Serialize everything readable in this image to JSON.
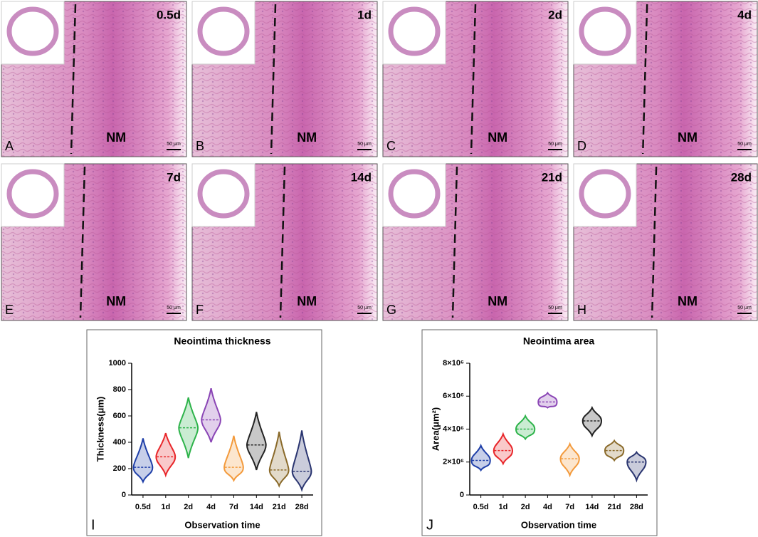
{
  "panels": [
    {
      "letter": "A",
      "time": "0.5d",
      "region": "NM",
      "scale": "50 μm"
    },
    {
      "letter": "B",
      "time": "1d",
      "region": "NM",
      "scale": "50 μm"
    },
    {
      "letter": "C",
      "time": "2d",
      "region": "NM",
      "scale": "50 μm"
    },
    {
      "letter": "D",
      "time": "4d",
      "region": "NM",
      "scale": "50 μm"
    },
    {
      "letter": "E",
      "time": "7d",
      "region": "NM",
      "scale": "50 μm"
    },
    {
      "letter": "F",
      "time": "14d",
      "region": "NM",
      "scale": "50 μm"
    },
    {
      "letter": "G",
      "time": "21d",
      "region": "NM",
      "scale": "50 μm"
    },
    {
      "letter": "H",
      "time": "28d",
      "region": "NM",
      "scale": "50 μm"
    }
  ],
  "chart_data": [
    {
      "type": "violin",
      "panel_label": "I",
      "title": "Neointima thickness",
      "x_label": "Observation time",
      "y_label": "Thickness(μm)",
      "categories": [
        "0.5d",
        "1d",
        "2d",
        "4d",
        "7d",
        "14d",
        "21d",
        "28d"
      ],
      "values": [
        210,
        290,
        510,
        570,
        210,
        380,
        190,
        180
      ],
      "lows": [
        100,
        150,
        280,
        400,
        110,
        190,
        70,
        40
      ],
      "highs": [
        430,
        470,
        740,
        810,
        450,
        630,
        480,
        490
      ],
      "colors": [
        "#1f3fa8",
        "#e8262a",
        "#2db34a",
        "#8a45b5",
        "#f39a3c",
        "#222222",
        "#8a6a2a",
        "#2a3570"
      ],
      "ylim": [
        0,
        1000
      ],
      "yticks": [
        0,
        200,
        400,
        600,
        800,
        1000
      ]
    },
    {
      "type": "violin",
      "panel_label": "J",
      "title": "Neointima area",
      "x_label": "Observation time",
      "y_label": "Area(μm²)",
      "categories": [
        "0.5d",
        "1d",
        "2d",
        "4d",
        "7d",
        "14d",
        "21d",
        "28d"
      ],
      "values": [
        2100000,
        2700000,
        4000000,
        5650000,
        2200000,
        4500000,
        2700000,
        2000000
      ],
      "lows": [
        1500000,
        1900000,
        3400000,
        5300000,
        1200000,
        3600000,
        2100000,
        900000
      ],
      "highs": [
        3000000,
        3700000,
        4800000,
        6200000,
        3100000,
        5300000,
        3300000,
        2600000
      ],
      "colors": [
        "#1f3fa8",
        "#e8262a",
        "#2db34a",
        "#8a45b5",
        "#f39a3c",
        "#222222",
        "#8a6a2a",
        "#2a3570"
      ],
      "ylim": [
        0,
        8000000
      ],
      "yticks": [
        0,
        {
          "value": 2000000,
          "label": "2×10⁶"
        },
        {
          "value": 4000000,
          "label": "4×10⁶"
        },
        {
          "value": 6000000,
          "label": "6×10⁶"
        },
        {
          "value": 8000000,
          "label": "8×10⁶"
        }
      ]
    }
  ]
}
